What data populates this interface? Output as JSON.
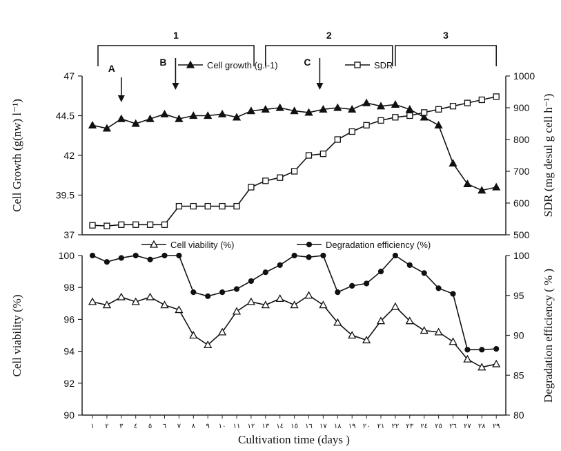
{
  "chart_data": [
    {
      "type": "line",
      "panel": "top",
      "x_axis": {
        "title": "",
        "categories": [
          "١",
          "٢",
          "٣",
          "٤",
          "٥",
          "٦",
          "٧",
          "٨",
          "٩",
          "١٠",
          "١١",
          "١٢",
          "١٣",
          "١٤",
          "١٥",
          "١٦",
          "١٧",
          "١٨",
          "١٩",
          "٢٠",
          "٢١",
          "٢٢",
          "٢٣",
          "٢٤",
          "٢٥",
          "٢٦",
          "٢٧",
          "٢٨",
          "٢٩"
        ]
      },
      "y_axis_left": {
        "label": "Cell Growth (g(nw) l⁻¹)",
        "range": [
          37,
          47
        ],
        "ticks": [
          "37",
          "39.5",
          "42",
          "44.5",
          "47"
        ]
      },
      "y_axis_right": {
        "label": "SDR (mg desul g cell h⁻¹)",
        "range": [
          500,
          1000
        ],
        "ticks": [
          "500",
          "600",
          "700",
          "800",
          "900",
          "1000"
        ]
      },
      "legend": {
        "position": "top-center"
      },
      "series": [
        {
          "name": "Cell growth (g.l-1)",
          "axis": "left",
          "marker": "filled-triangle",
          "x": [
            1,
            2,
            3,
            4,
            5,
            6,
            7,
            8,
            9,
            10,
            11,
            12,
            13,
            14,
            15,
            16,
            17,
            18,
            19,
            20,
            21,
            22,
            23,
            24,
            25,
            26,
            27,
            28,
            29
          ],
          "values": [
            43.9,
            43.7,
            44.3,
            44.0,
            44.3,
            44.6,
            44.3,
            44.5,
            44.5,
            44.6,
            44.4,
            44.8,
            44.9,
            45.0,
            44.8,
            44.7,
            44.9,
            45.0,
            44.9,
            45.3,
            45.1,
            45.2,
            44.9,
            44.4,
            43.9,
            41.5,
            40.2,
            39.8,
            40.0
          ]
        },
        {
          "name": "SDR",
          "axis": "right",
          "marker": "open-square",
          "x": [
            1,
            2,
            3,
            4,
            5,
            6,
            7,
            8,
            9,
            10,
            11,
            12,
            13,
            14,
            15,
            16,
            17,
            18,
            19,
            20,
            21,
            22,
            23,
            24,
            25,
            26,
            27,
            28,
            29
          ],
          "values": [
            530,
            528,
            532,
            532,
            532,
            532,
            590,
            590,
            590,
            590,
            590,
            650,
            670,
            680,
            700,
            750,
            755,
            800,
            825,
            845,
            860,
            870,
            875,
            885,
            895,
            905,
            915,
            925,
            935
          ]
        }
      ],
      "annotations": [
        {
          "text": "A",
          "x": 3
        },
        {
          "text": "B",
          "x": 7
        },
        {
          "text": "C",
          "x": 17
        }
      ],
      "phases": [
        {
          "label": "1",
          "from": 1,
          "to": 12.2
        },
        {
          "label": "2",
          "from": 13,
          "to": 21.8
        },
        {
          "label": "3",
          "from": 22,
          "to": 29
        }
      ]
    },
    {
      "type": "line",
      "panel": "bottom",
      "x_axis": {
        "title": "Cultivation time (days )",
        "categories": [
          "١",
          "٢",
          "٣",
          "٤",
          "٥",
          "٦",
          "٧",
          "٨",
          "٩",
          "١٠",
          "١١",
          "١٢",
          "١٣",
          "١٤",
          "١٥",
          "١٦",
          "١٧",
          "١٨",
          "١٩",
          "٢٠",
          "٢١",
          "٢٢",
          "٢٣",
          "٢٤",
          "٢٥",
          "٢٦",
          "٢٧",
          "٢٨",
          "٢٩"
        ]
      },
      "y_axis_left": {
        "label": "Cell viability (%)",
        "range": [
          90,
          100
        ],
        "ticks": [
          "90",
          "92",
          "94",
          "96",
          "98",
          "100"
        ]
      },
      "y_axis_right": {
        "label": "Degradation efficiency ( % )",
        "range": [
          80,
          100
        ],
        "ticks": [
          "80",
          "85",
          "90",
          "95",
          "100"
        ]
      },
      "legend": {
        "position": "top-center"
      },
      "series": [
        {
          "name": "Cell viability (%)",
          "axis": "left",
          "marker": "open-triangle",
          "x": [
            1,
            2,
            3,
            4,
            5,
            6,
            7,
            8,
            9,
            10,
            11,
            12,
            13,
            14,
            15,
            16,
            17,
            18,
            19,
            20,
            21,
            22,
            23,
            24,
            25,
            26,
            27,
            28,
            29
          ],
          "values": [
            97.1,
            96.9,
            97.4,
            97.1,
            97.4,
            96.9,
            96.6,
            95.0,
            94.4,
            95.2,
            96.5,
            97.1,
            96.9,
            97.3,
            96.9,
            97.5,
            96.9,
            95.8,
            95.0,
            94.7,
            95.9,
            96.8,
            95.9,
            95.3,
            95.2,
            94.6,
            93.5,
            93.0,
            93.2
          ]
        },
        {
          "name": "Degradation efficiency (%)",
          "axis": "right",
          "marker": "filled-circle",
          "x": [
            1,
            2,
            3,
            4,
            5,
            6,
            7,
            8,
            9,
            10,
            11,
            12,
            13,
            14,
            15,
            16,
            17,
            18,
            19,
            20,
            21,
            22,
            23,
            24,
            25,
            26,
            27,
            28,
            29
          ],
          "values": [
            100,
            99.2,
            99.7,
            100,
            99.5,
            100,
            100,
            95.4,
            94.9,
            95.4,
            95.8,
            96.8,
            97.9,
            98.8,
            100,
            99.8,
            100,
            95.4,
            96.2,
            96.5,
            98.0,
            100,
            98.8,
            97.8,
            95.9,
            95.2,
            88.2,
            88.2,
            88.3
          ]
        }
      ]
    }
  ],
  "colors": {
    "line": "#111111",
    "axis": "#222222"
  }
}
